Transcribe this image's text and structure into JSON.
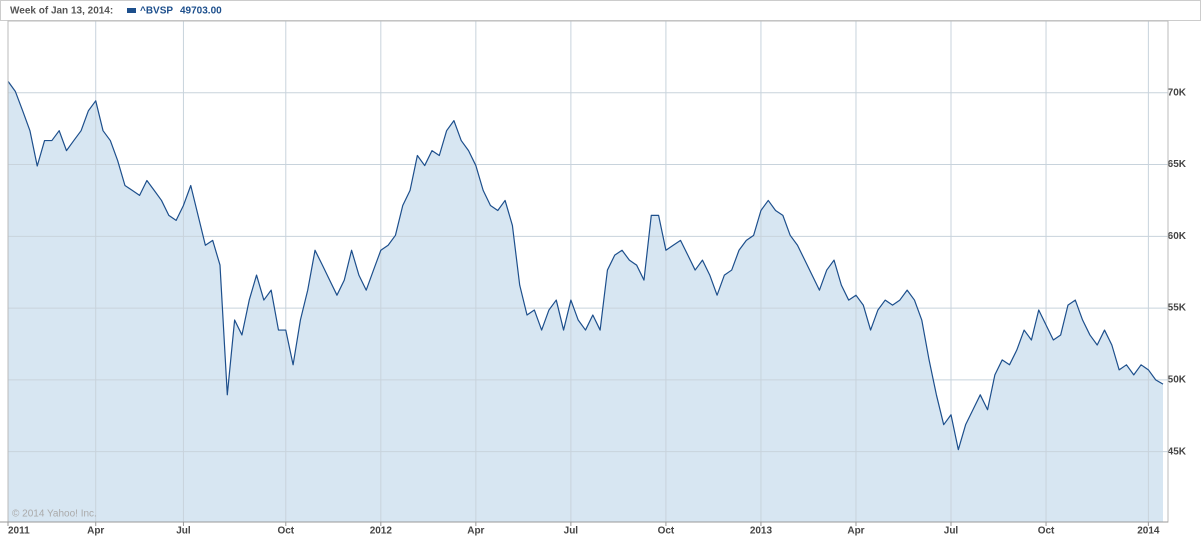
{
  "chart_data": {
    "type": "area",
    "subtitle": "Week of Jan 13, 2014:",
    "legend_value": "49703.00",
    "credit": "© 2014 Yahoo! Inc.",
    "categories": [
      "2011",
      null,
      null,
      null,
      null,
      null,
      null,
      null,
      null,
      null,
      null,
      null,
      "Apr",
      null,
      null,
      null,
      null,
      null,
      null,
      null,
      null,
      null,
      null,
      null,
      "Jul",
      null,
      null,
      null,
      null,
      null,
      null,
      null,
      null,
      null,
      null,
      null,
      null,
      null,
      "Oct",
      null,
      null,
      null,
      null,
      null,
      null,
      null,
      null,
      null,
      null,
      null,
      null,
      "2012",
      null,
      null,
      null,
      null,
      null,
      null,
      null,
      null,
      null,
      null,
      null,
      null,
      "Apr",
      null,
      null,
      null,
      null,
      null,
      null,
      null,
      null,
      null,
      null,
      null,
      null,
      "Jul",
      null,
      null,
      null,
      null,
      null,
      null,
      null,
      null,
      null,
      null,
      null,
      null,
      "Oct",
      null,
      null,
      null,
      null,
      null,
      null,
      null,
      null,
      null,
      null,
      null,
      null,
      "2013",
      null,
      null,
      null,
      null,
      null,
      null,
      null,
      null,
      null,
      null,
      null,
      null,
      "Apr",
      null,
      null,
      null,
      null,
      null,
      null,
      null,
      null,
      null,
      null,
      null,
      null,
      "Jul",
      null,
      null,
      null,
      null,
      null,
      null,
      null,
      null,
      null,
      null,
      null,
      null,
      "Oct",
      null,
      null,
      null,
      null,
      null,
      null,
      null,
      null,
      null,
      null,
      null,
      null,
      null,
      "2014",
      null,
      null
    ],
    "series": [
      {
        "name": "^BVSP",
        "color": "#1d4f8c",
        "fill": "#d7e6f2",
        "values": [
          70800,
          70100,
          68750,
          67360,
          64900,
          66670,
          66670,
          67360,
          65970,
          66670,
          67360,
          68750,
          69440,
          67360,
          66670,
          65280,
          63540,
          63200,
          62850,
          63890,
          63200,
          62500,
          61460,
          61110,
          62150,
          63540,
          61460,
          59380,
          59720,
          58000,
          48960,
          54170,
          53130,
          55560,
          57300,
          55560,
          56250,
          53470,
          53470,
          51050,
          54170,
          56250,
          59030,
          58000,
          56950,
          55900,
          56950,
          59030,
          57300,
          56250,
          57650,
          59030,
          59380,
          60070,
          62150,
          63200,
          65630,
          64930,
          65970,
          65630,
          67360,
          68060,
          66670,
          65970,
          64930,
          63200,
          62150,
          61800,
          62500,
          60760,
          56600,
          54520,
          54870,
          53470,
          54870,
          55560,
          53470,
          55560,
          54170,
          53470,
          54520,
          53470,
          57650,
          58690,
          59030,
          58340,
          57990,
          56950,
          61460,
          61460,
          59030,
          59380,
          59720,
          58690,
          57650,
          58340,
          57300,
          55900,
          57300,
          57650,
          59030,
          59720,
          60070,
          61800,
          62500,
          61800,
          61460,
          60070,
          59380,
          58340,
          57300,
          56250,
          57650,
          58340,
          56600,
          55560,
          55900,
          55210,
          53470,
          54870,
          55560,
          55210,
          55560,
          56250,
          55560,
          54170,
          51390,
          48960,
          46880,
          47570,
          45140,
          46880,
          47920,
          48960,
          47920,
          50350,
          51390,
          51050,
          52080,
          53470,
          52780,
          54870,
          53820,
          52780,
          53130,
          55210,
          55560,
          54170,
          53130,
          52430,
          53470,
          52430,
          50700,
          51050,
          50350,
          51050,
          50700,
          50000,
          49703
        ]
      }
    ],
    "ylim": [
      40100,
      75000
    ],
    "yticks": [
      {
        "value": 45000,
        "label": "45K"
      },
      {
        "value": 50000,
        "label": "50K"
      },
      {
        "value": 55000,
        "label": "55K"
      },
      {
        "value": 60000,
        "label": "60K"
      },
      {
        "value": 65000,
        "label": "65K"
      },
      {
        "value": 70000,
        "label": "70K"
      }
    ],
    "grid": true
  }
}
